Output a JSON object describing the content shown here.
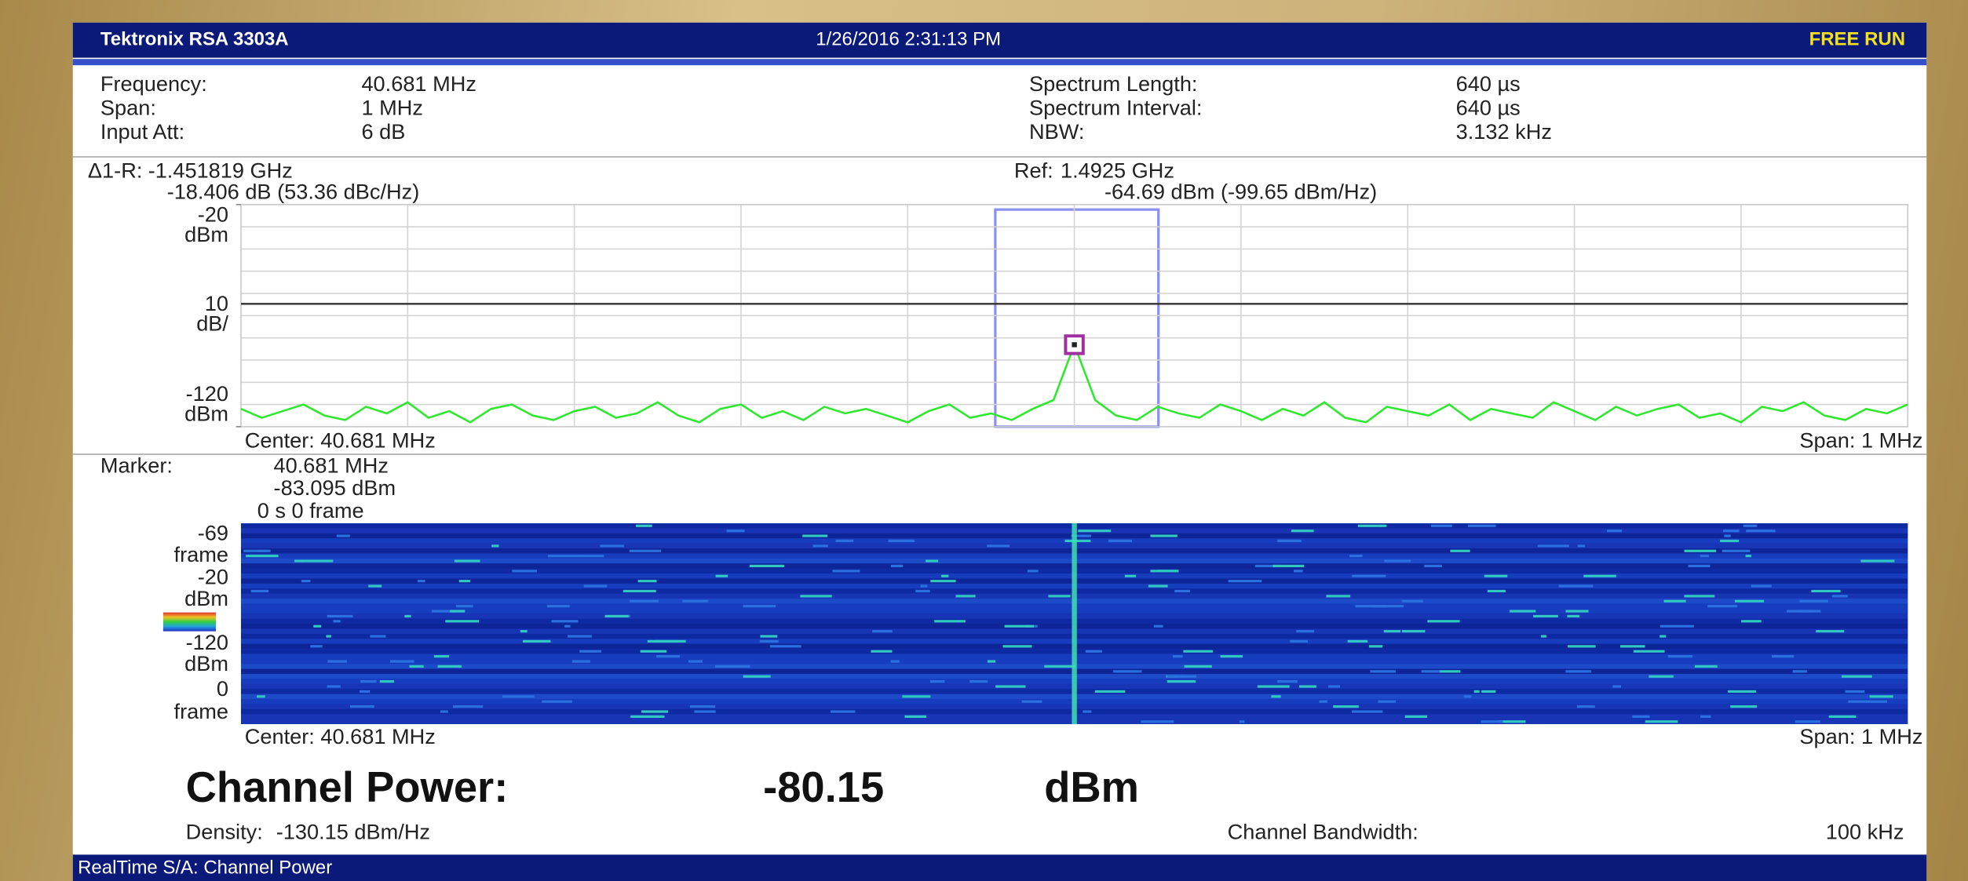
{
  "header": {
    "instrument": "Tektronix RSA 3303A",
    "datetime": "1/26/2016 2:31:13 PM",
    "mode": "FREE RUN"
  },
  "settings_left": [
    [
      "Frequency:",
      "40.681 MHz"
    ],
    [
      "Span:",
      "1 MHz"
    ],
    [
      "Input Att:",
      "6 dB"
    ]
  ],
  "settings_right": [
    [
      "Spectrum Length:",
      "640 µs"
    ],
    [
      "Spectrum Interval:",
      "640 µs"
    ],
    [
      "NBW:",
      "3.132 kHz"
    ]
  ],
  "delta": {
    "label": "Δ1-R:",
    "frequency": "-1.451819 GHz",
    "level": "-18.406 dB (53.36 dBc/Hz)"
  },
  "reference": {
    "label": "Ref:",
    "frequency": "1.4925 GHz",
    "level": "-64.69 dBm (-99.65 dBm/Hz)"
  },
  "spectrum": {
    "type": "line",
    "ylim": [
      -120,
      -20
    ],
    "yticks": [
      -20,
      -120
    ],
    "unit": "dBm",
    "scale": "10",
    "scale_unit": "dB/",
    "ref_line": -64.69,
    "color": "#2ee82e",
    "values": [
      -112,
      -116,
      -113,
      -110,
      -115,
      -117,
      -111,
      -114,
      -109,
      -116,
      -113,
      -118,
      -112,
      -110,
      -115,
      -117,
      -113,
      -111,
      -116,
      -114,
      -109,
      -115,
      -118,
      -112,
      -110,
      -116,
      -113,
      -117,
      -111,
      -114,
      -112,
      -115,
      -118,
      -113,
      -110,
      -116,
      -114,
      -117,
      -112,
      -108,
      -83.095,
      -108,
      -115,
      -117,
      -111,
      -114,
      -116,
      -110,
      -113,
      -117,
      -112,
      -115,
      -109,
      -116,
      -118,
      -111,
      -113,
      -115,
      -110,
      -117,
      -112,
      -114,
      -116,
      -109,
      -113,
      -117,
      -111,
      -115,
      -112,
      -110,
      -116,
      -114,
      -118,
      -111,
      -113,
      -109,
      -115,
      -117,
      -112,
      -114,
      -110
    ],
    "center": "Center: 40.681 MHz",
    "span": "Span: 1 MHz"
  },
  "marker": {
    "label": "Marker:",
    "frequency": "40.681 MHz",
    "level": "-83.095 dBm",
    "time": "0 s  0 frame"
  },
  "spectrogram": {
    "top": "-69",
    "top_unit": "frame",
    "max": "-20",
    "max_unit": "dBm",
    "min": "-120",
    "min_unit": "dBm",
    "bottom": "0",
    "bottom_unit": "frame",
    "center": "Center: 40.681 MHz",
    "span": "Span: 1 MHz"
  },
  "result": {
    "label": "Channel Power:",
    "value": "-80.15",
    "unit": "dBm",
    "density_label": "Density:",
    "density": "-130.15 dBm/Hz",
    "bandwidth_label": "Channel Bandwidth:",
    "bandwidth": "100 kHz"
  },
  "footer": "RealTime S/A: Channel Power"
}
